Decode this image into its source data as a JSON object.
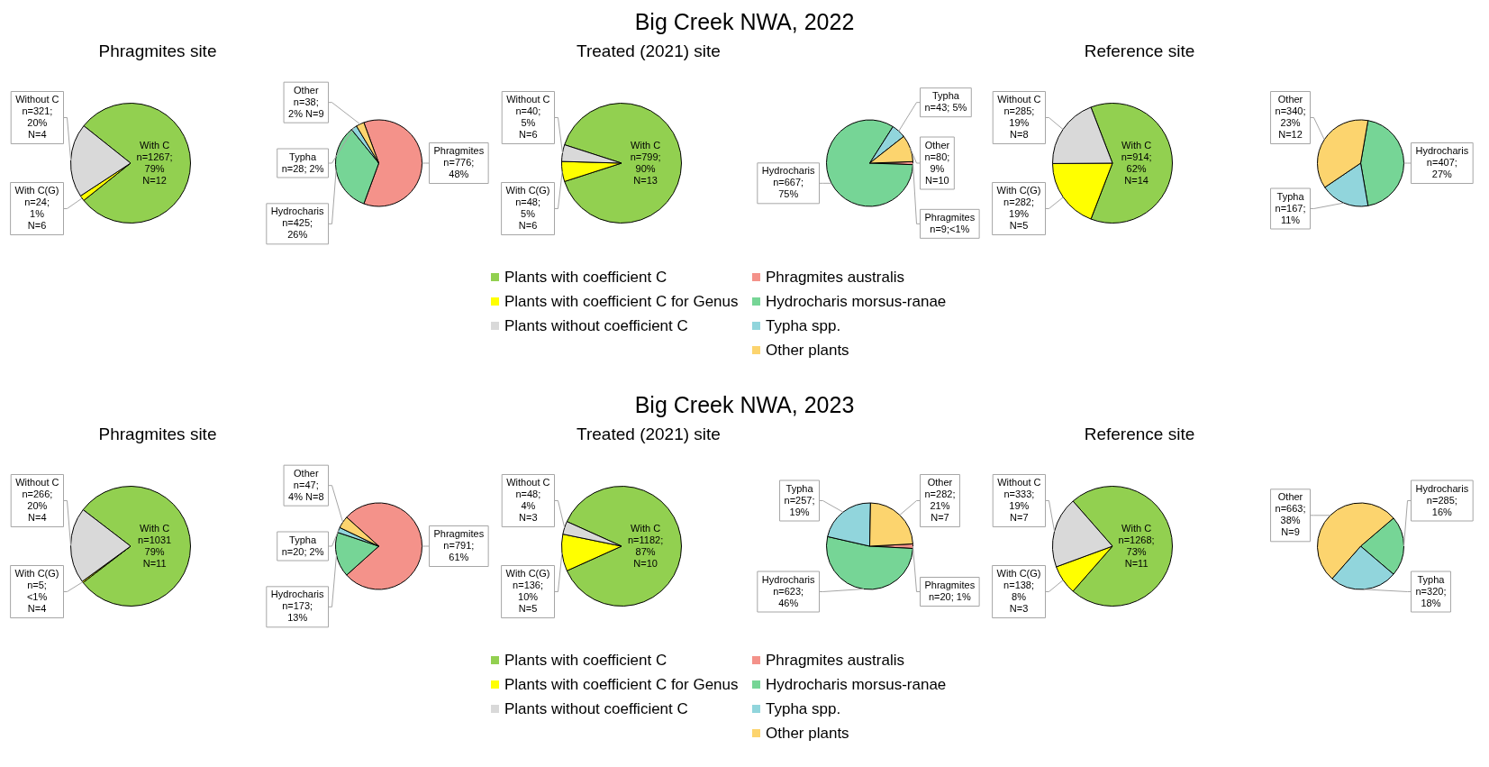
{
  "chart_data": [
    {
      "type": "pie",
      "annotations": [
        "Big Creek NWA, 2022"
      ],
      "subtitle": "Phragmites site",
      "categories": [
        null,
        null,
        null
      ],
      "values": [
        1267,
        24,
        321
      ],
      "colors": [
        "#92d050",
        "#ffff00",
        "#d9d9d9"
      ],
      "value_labels": [
        "With C\nn=1267;\n79%\nN=12",
        "With C(G)\nn=24;\n1%\nN=6",
        "Without C\nn=321;\n20%\nN=4"
      ]
    },
    {
      "type": "pie",
      "categories": [
        null,
        null,
        null,
        null
      ],
      "values": [
        776,
        425,
        28,
        38
      ],
      "colors": [
        "#f4928a",
        "#76d596",
        "#91d5dc",
        "#fcd46e"
      ],
      "value_labels": [
        "Phragmites\nn=776;\n48%",
        "Hydrocharis\nn=425;\n26%",
        "Typha\nn=28; 2%",
        "Other\nn=38;\n2% N=9"
      ]
    },
    {
      "type": "pie",
      "subtitle": "Treated (2021) site",
      "categories": [
        "Plants with coefficient C",
        "Plants with coefficient C for Genus",
        "Plants without coefficient C"
      ],
      "values": [
        799,
        48,
        40
      ],
      "colors": [
        "#92d050",
        "#ffff00",
        "#d9d9d9"
      ],
      "value_labels": [
        "With C\nn=799;\n90%\nN=13",
        "With C(G)\nn=48;\n5%\nN=6",
        "Without C\nn=40;\n5%\nN=6"
      ],
      "legend": "bottom"
    },
    {
      "type": "pie",
      "categories": [
        "Phragmites australis",
        "Hydrocharis morsus-ranae",
        "Typha spp.",
        "Other plants"
      ],
      "values": [
        9,
        667,
        43,
        80
      ],
      "colors": [
        "#f4928a",
        "#76d596",
        "#91d5dc",
        "#fcd46e"
      ],
      "value_labels": [
        "Phragmites\nn=9;<1%",
        "Hydrocharis\nn=667;\n75%",
        "Typha\nn=43; 5%",
        "Other\nn=80;\n9%\nN=10"
      ],
      "legend": "bottom"
    },
    {
      "type": "pie",
      "subtitle": "Reference site",
      "categories": [
        null,
        null,
        null
      ],
      "values": [
        914,
        282,
        285
      ],
      "colors": [
        "#92d050",
        "#ffff00",
        "#d9d9d9"
      ],
      "value_labels": [
        "With C\nn=914;\n62%\nN=14",
        "With C(G)\nn=282;\n19%\nN=5",
        "Without C\nn=285;\n19%\nN=8"
      ]
    },
    {
      "type": "pie",
      "categories": [
        null,
        null,
        null
      ],
      "values": [
        407,
        167,
        340
      ],
      "colors": [
        "#76d596",
        "#91d5dc",
        "#fcd46e"
      ],
      "value_labels": [
        "Hydrocharis\nn=407;\n27%",
        "Typha\nn=167;\n11%",
        "Other\nn=340;\n23%\nN=12"
      ]
    },
    {
      "type": "pie",
      "annotations": [
        "Big Creek NWA, 2023"
      ],
      "subtitle": "Phragmites site",
      "categories": [
        null,
        null,
        null
      ],
      "values": [
        1031,
        5,
        266
      ],
      "colors": [
        "#92d050",
        "#ffff00",
        "#d9d9d9"
      ],
      "value_labels": [
        "With C\nn=1031\n79%\nN=11",
        "With C(G)\nn=5;\n<1%\nN=4",
        "Without C\nn=266;\n20%\nN=4"
      ]
    },
    {
      "type": "pie",
      "categories": [
        null,
        null,
        null,
        null
      ],
      "values": [
        791,
        173,
        20,
        47
      ],
      "colors": [
        "#f4928a",
        "#76d596",
        "#91d5dc",
        "#fcd46e"
      ],
      "value_labels": [
        "Phragmites\nn=791;\n61%",
        "Hydrocharis\nn=173;\n13%",
        "Typha\nn=20; 2%",
        "Other\nn=47;\n4% N=8"
      ]
    },
    {
      "type": "pie",
      "subtitle": "Treated (2021) site",
      "categories": [
        "Plants with coefficient C",
        "Plants with coefficient C for Genus",
        "Plants without coefficient C"
      ],
      "values": [
        1182,
        136,
        48
      ],
      "colors": [
        "#92d050",
        "#ffff00",
        "#d9d9d9"
      ],
      "value_labels": [
        "With C\nn=1182;\n87%\nN=10",
        "With C(G)\nn=136;\n10%\nN=5",
        "Without C\nn=48;\n4%\nN=3"
      ],
      "legend": "bottom"
    },
    {
      "type": "pie",
      "categories": [
        "Phragmites australis",
        "Hydrocharis morsus-ranae",
        "Typha spp.",
        "Other plants"
      ],
      "values": [
        20,
        623,
        257,
        282
      ],
      "colors": [
        "#f4928a",
        "#76d596",
        "#91d5dc",
        "#fcd46e"
      ],
      "value_labels": [
        "Phragmites\nn=20; 1%",
        "Hydrocharis\nn=623;\n46%",
        "Typha\nn=257;\n19%",
        "Other\nn=282;\n21%\nN=7"
      ],
      "legend": "bottom"
    },
    {
      "type": "pie",
      "subtitle": "Reference site",
      "categories": [
        null,
        null,
        null
      ],
      "values": [
        1268,
        138,
        333
      ],
      "colors": [
        "#92d050",
        "#ffff00",
        "#d9d9d9"
      ],
      "value_labels": [
        "With C\nn=1268;\n73%\nN=11",
        "With C(G)\nn=138;\n8%\nN=3",
        "Without C\nn=333;\n19%\nN=7"
      ]
    },
    {
      "type": "pie",
      "categories": [
        null,
        null,
        null
      ],
      "values": [
        285,
        320,
        663
      ],
      "colors": [
        "#76d596",
        "#91d5dc",
        "#fcd46e"
      ],
      "value_labels": [
        "Hydrocharis\nn=285;\n16%",
        "Typha\nn=320;\n18%",
        "Other\nn=663;\n38%\nN=9"
      ]
    }
  ]
}
